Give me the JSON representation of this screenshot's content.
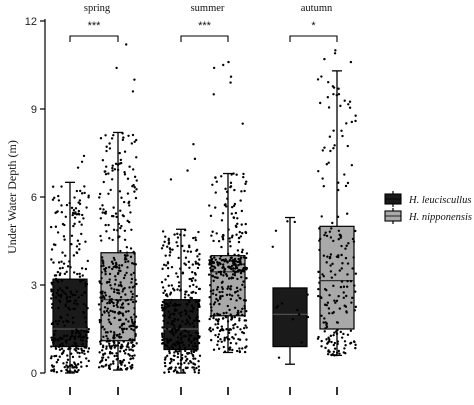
{
  "chart_data": {
    "type": "box",
    "ylabel": "Under Water Depth (m)",
    "ylim": [
      0,
      12
    ],
    "yticks": [
      "0",
      "3",
      "6",
      "9",
      "12"
    ],
    "groups": [
      "spring",
      "summer",
      "autumn"
    ],
    "significance": [
      "***",
      "***",
      "*"
    ],
    "legend_position": "right",
    "series": [
      {
        "name": "H. leuciscullus",
        "color": "#1a1a1a",
        "stats": [
          {
            "min": 0.0,
            "q1": 0.9,
            "median": 1.5,
            "q3": 3.2,
            "max": 6.5
          },
          {
            "min": 0.0,
            "q1": 0.8,
            "median": 1.5,
            "q3": 2.5,
            "max": 4.9
          },
          {
            "min": 0.3,
            "q1": 0.9,
            "median": 2.0,
            "q3": 2.9,
            "max": 5.3
          }
        ]
      },
      {
        "name": "H. nipponensis",
        "color": "#a9a9a9",
        "stats": [
          {
            "min": 0.1,
            "q1": 1.1,
            "median": 2.5,
            "q3": 4.1,
            "max": 8.2
          },
          {
            "min": 0.7,
            "q1": 1.95,
            "median": 3.45,
            "q3": 4.0,
            "max": 6.8
          },
          {
            "min": 0.6,
            "q1": 1.5,
            "median": 3.15,
            "q3": 5.0,
            "max": 10.3
          }
        ]
      }
    ]
  }
}
